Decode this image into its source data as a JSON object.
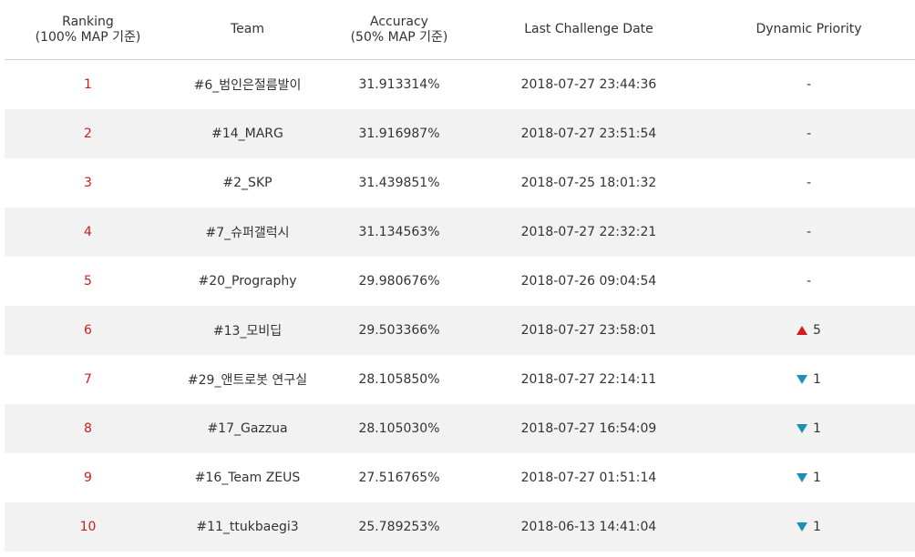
{
  "header": {
    "ranking_line1": "Ranking",
    "ranking_line2": "(100% MAP 기준)",
    "team": "Team",
    "accuracy_line1": "Accuracy",
    "accuracy_line2": "(50% MAP 기준)",
    "last_date": "Last Challenge Date",
    "priority": "Dynamic Priority"
  },
  "colors": {
    "rank_text": "#d01c1c",
    "up_arrow": "#d01c1c",
    "down_arrow": "#1f8fb8",
    "alt_row": "#f2f2f2"
  },
  "rows": [
    {
      "rank": "1",
      "team": "#6_범인은절름발이",
      "accuracy": "31.913314%",
      "date": "2018-07-27 23:44:36",
      "priority": "-",
      "trend": "none"
    },
    {
      "rank": "2",
      "team": "#14_MARG",
      "accuracy": "31.916987%",
      "date": "2018-07-27 23:51:54",
      "priority": "-",
      "trend": "none"
    },
    {
      "rank": "3",
      "team": "#2_SKP",
      "accuracy": "31.439851%",
      "date": "2018-07-25 18:01:32",
      "priority": "-",
      "trend": "none"
    },
    {
      "rank": "4",
      "team": "#7_슈퍼갤럭시",
      "accuracy": "31.134563%",
      "date": "2018-07-27 22:32:21",
      "priority": "-",
      "trend": "none"
    },
    {
      "rank": "5",
      "team": "#20_Prography",
      "accuracy": "29.980676%",
      "date": "2018-07-26 09:04:54",
      "priority": "-",
      "trend": "none"
    },
    {
      "rank": "6",
      "team": "#13_모비딥",
      "accuracy": "29.503366%",
      "date": "2018-07-27 23:58:01",
      "priority": "5",
      "trend": "up"
    },
    {
      "rank": "7",
      "team": "#29_앤트로봇 연구실",
      "accuracy": "28.105850%",
      "date": "2018-07-27 22:14:11",
      "priority": "1",
      "trend": "down"
    },
    {
      "rank": "8",
      "team": "#17_Gazzua",
      "accuracy": "28.105030%",
      "date": "2018-07-27 16:54:09",
      "priority": "1",
      "trend": "down"
    },
    {
      "rank": "9",
      "team": "#16_Team ZEUS",
      "accuracy": "27.516765%",
      "date": "2018-07-27 01:51:14",
      "priority": "1",
      "trend": "down"
    },
    {
      "rank": "10",
      "team": "#11_ttukbaegi3",
      "accuracy": "25.789253%",
      "date": "2018-06-13 14:41:04",
      "priority": "1",
      "trend": "down"
    }
  ]
}
